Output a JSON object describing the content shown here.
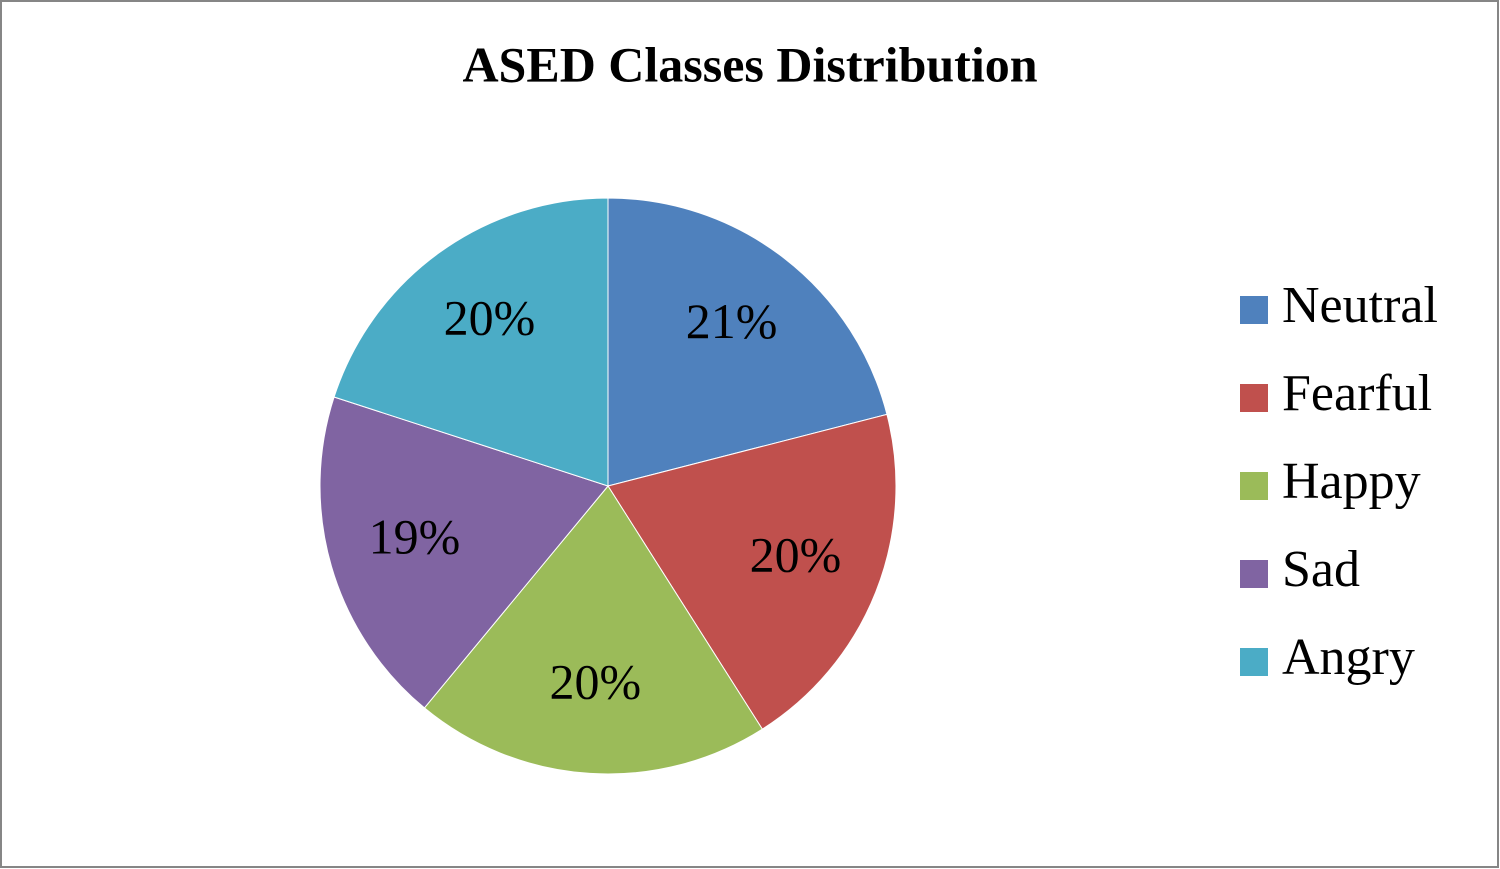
{
  "chart_data": {
    "type": "pie",
    "title": "ASED Classes Distribution",
    "categories": [
      "Neutral",
      "Fearful",
      "Happy",
      "Sad",
      "Angry"
    ],
    "values": [
      21,
      20,
      20,
      19,
      20
    ],
    "value_labels": [
      "21%",
      "20%",
      "20%",
      "19%",
      "20%"
    ],
    "colors": [
      "#4f81bd",
      "#c0504d",
      "#9bbb59",
      "#8064a2",
      "#4bacc6"
    ],
    "legend": "right"
  }
}
